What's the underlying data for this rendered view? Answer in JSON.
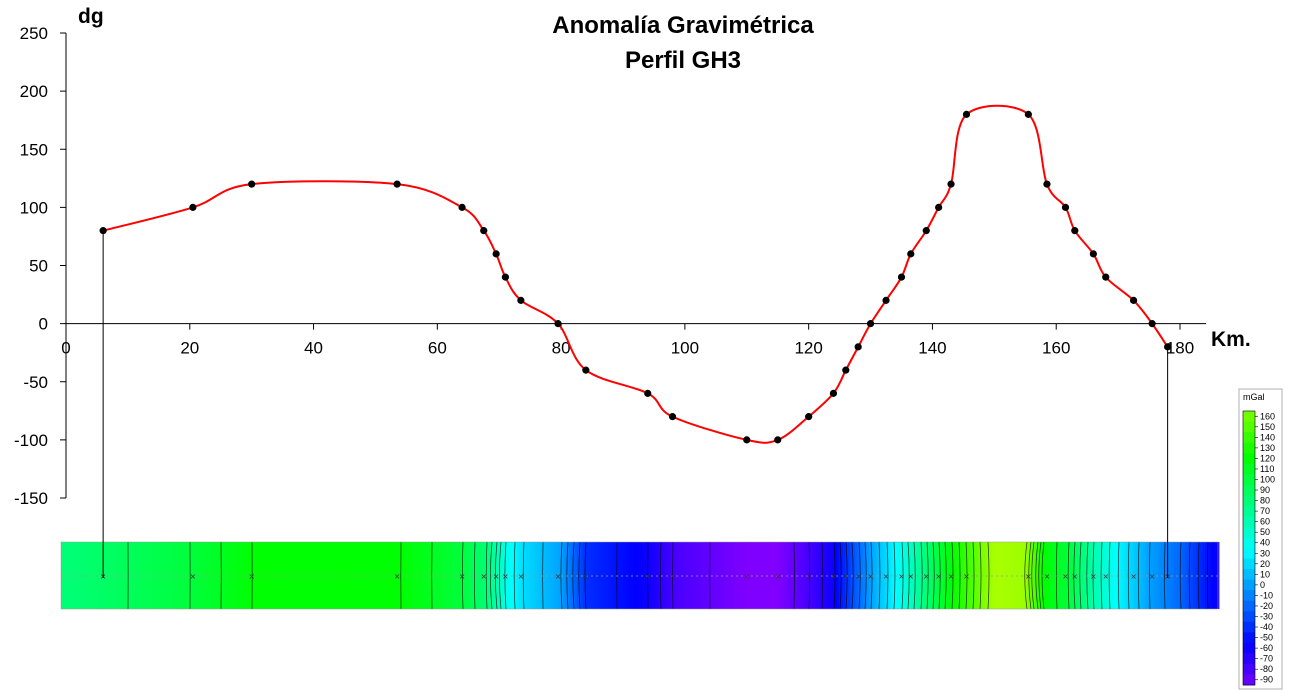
{
  "chart_data": {
    "type": "line",
    "title": [
      "Anomalía Gravimétrica",
      "Perfil GH3"
    ],
    "ylabel": "dg",
    "xlabel": "Km.",
    "xlim": [
      0,
      180
    ],
    "ylim": [
      -150,
      250
    ],
    "xticks": [
      0,
      20,
      40,
      60,
      80,
      100,
      120,
      140,
      160,
      180
    ],
    "xtick_labels": [
      "0",
      "20",
      "40",
      "60",
      "80",
      "100",
      "120",
      "140",
      "160",
      "180"
    ],
    "yticks": [
      250,
      200,
      150,
      100,
      50,
      0,
      -50,
      -100,
      -150
    ],
    "ytick_labels": [
      "250",
      "200",
      "150",
      "100",
      "50",
      "0",
      "-50",
      "-100",
      "-150"
    ],
    "series": [
      {
        "color": "#ff0000",
        "points": [
          [
            6,
            80
          ],
          [
            20.5,
            100
          ],
          [
            30,
            120
          ],
          [
            53.5,
            120
          ],
          [
            64,
            100
          ],
          [
            67.5,
            80
          ],
          [
            69.5,
            60
          ],
          [
            71,
            40
          ],
          [
            73.5,
            20
          ],
          [
            79.5,
            0
          ],
          [
            84,
            -40
          ],
          [
            94,
            -60
          ],
          [
            98,
            -80
          ],
          [
            110,
            -100
          ],
          [
            115,
            -100
          ],
          [
            120,
            -80
          ],
          [
            124,
            -60
          ],
          [
            126,
            -40
          ],
          [
            128,
            -20
          ],
          [
            130,
            0
          ],
          [
            132.5,
            20
          ],
          [
            135,
            40
          ],
          [
            136.5,
            60
          ],
          [
            139,
            80
          ],
          [
            141,
            100
          ],
          [
            143,
            120
          ],
          [
            145.5,
            180
          ],
          [
            155.5,
            180
          ],
          [
            158.5,
            120
          ],
          [
            161.5,
            100
          ],
          [
            163,
            80
          ],
          [
            166,
            60
          ],
          [
            168,
            40
          ],
          [
            172.5,
            20
          ],
          [
            175.5,
            0
          ],
          [
            178,
            -20
          ]
        ]
      }
    ],
    "markers": {
      "color": "#000000"
    },
    "section_lines_x": [
      6,
      178
    ],
    "colormap": {
      "unit": "mGal",
      "levels": [
        "160",
        "150",
        "140",
        "130",
        "120",
        "110",
        "100",
        "90",
        "80",
        "70",
        "60",
        "50",
        "40",
        "30",
        "20",
        "10",
        "0",
        "-10",
        "-20",
        "-30",
        "-40",
        "-50",
        "-60",
        "-70",
        "-80",
        "-90"
      ]
    },
    "strip_profile": [
      [
        0,
        80
      ],
      [
        20,
        100
      ],
      [
        30,
        120
      ],
      [
        54,
        120
      ],
      [
        64,
        100
      ],
      [
        68,
        80
      ],
      [
        71,
        40
      ],
      [
        74,
        20
      ],
      [
        80,
        0
      ],
      [
        84,
        -40
      ],
      [
        94,
        -60
      ],
      [
        98,
        -80
      ],
      [
        110,
        -100
      ],
      [
        115,
        -100
      ],
      [
        120,
        -80
      ],
      [
        124,
        -60
      ],
      [
        128,
        -20
      ],
      [
        130,
        0
      ],
      [
        135,
        40
      ],
      [
        139,
        80
      ],
      [
        143,
        120
      ],
      [
        150,
        180
      ],
      [
        155,
        175
      ],
      [
        158,
        120
      ],
      [
        162,
        100
      ],
      [
        166,
        60
      ],
      [
        170,
        30
      ],
      [
        175,
        0
      ],
      [
        180,
        -20
      ],
      [
        186,
        -60
      ]
    ]
  }
}
